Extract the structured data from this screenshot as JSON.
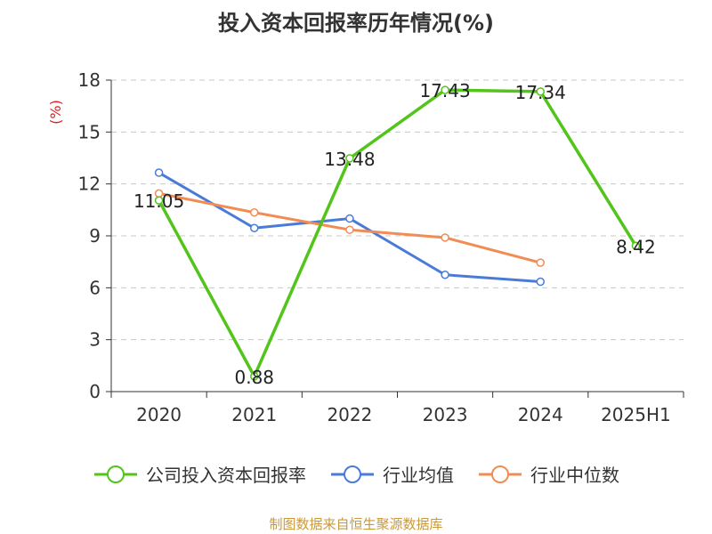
{
  "title": "投入资本回报率历年情况(%)",
  "source": "制图数据来自恒生聚源数据库",
  "chart_data": {
    "type": "line",
    "title": "投入资本回报率历年情况(%)",
    "ylabel": "(%)",
    "ylim": [
      0,
      18
    ],
    "yticks": [
      0,
      3,
      6,
      9,
      12,
      15,
      18
    ],
    "grid": true,
    "legend_position": "bottom",
    "categories": [
      "2020",
      "2021",
      "2022",
      "2023",
      "2024",
      "2025H1"
    ],
    "series": [
      {
        "name": "公司投入资本回报率",
        "color": "#52c41a",
        "label_color": "#52c41a",
        "values": [
          11.05,
          0.88,
          13.48,
          17.43,
          17.34,
          8.42
        ],
        "show_labels": true,
        "labels": [
          "11.05",
          "0.88",
          "13.48",
          "17.43",
          "17.34",
          "8.42"
        ]
      },
      {
        "name": "行业均值",
        "color": "#4a7bd8",
        "label_color": "#4a7bd8",
        "values": [
          12.65,
          9.45,
          10.0,
          6.75,
          6.35,
          null
        ],
        "show_labels": false
      },
      {
        "name": "行业中位数",
        "color": "#f28c55",
        "label_color": "#f28c55",
        "values": [
          11.45,
          10.35,
          9.35,
          8.9,
          7.45,
          null
        ],
        "show_labels": false
      }
    ]
  }
}
